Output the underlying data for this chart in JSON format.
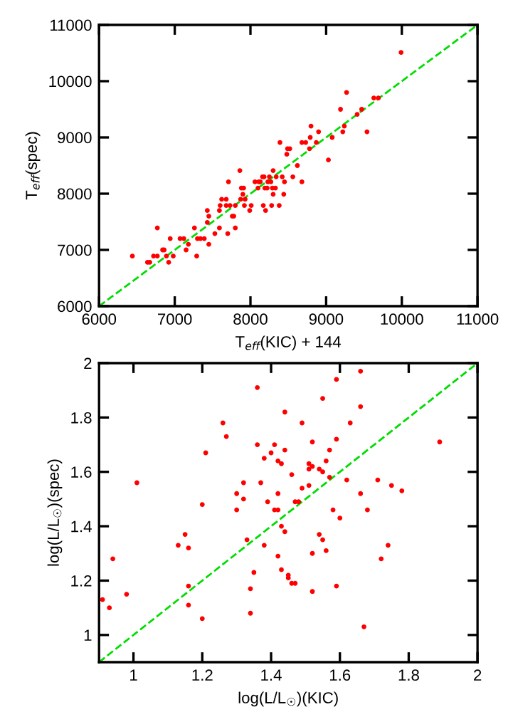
{
  "chart_data": [
    {
      "type": "scatter",
      "xlabel": "T$_{eff}$(KIC) + 144",
      "ylabel": "T$_{eff}$(spec)",
      "xlim": [
        6000,
        11000
      ],
      "ylim": [
        6000,
        11000
      ],
      "xticks": [
        6000,
        7000,
        8000,
        9000,
        10000,
        11000
      ],
      "yticks": [
        6000,
        7000,
        8000,
        9000,
        10000,
        11000
      ],
      "grid": false,
      "marker": "circle",
      "series": [
        {
          "color": "#ff0000",
          "x": [
            6440,
            6640,
            6670,
            6720,
            6770,
            6770,
            6840,
            6860,
            6890,
            6920,
            6940,
            6980,
            7070,
            7120,
            7150,
            7180,
            7260,
            7290,
            7300,
            7340,
            7390,
            7450,
            7430,
            7450,
            7430,
            7530,
            7590,
            7590,
            7600,
            7620,
            7680,
            7680,
            7710,
            7700,
            7730,
            7760,
            7780,
            7800,
            7800,
            7860,
            7870,
            7880,
            7900,
            7910,
            7930,
            7920,
            7990,
            8010,
            8060,
            8100,
            8110,
            8130,
            8160,
            8180,
            8170,
            8200,
            8190,
            8220,
            8230,
            8250,
            8270,
            8280,
            8290,
            8300,
            8300,
            8330,
            8340,
            8380,
            8390,
            8420,
            8440,
            8450,
            8480,
            8490,
            8520,
            8560,
            8620,
            8680,
            8680,
            8730,
            8780,
            8790,
            8800,
            8870,
            8900,
            9030,
            9080,
            9190,
            9220,
            9240,
            9270,
            9410,
            9470,
            9540,
            9630,
            9690,
            9990
          ],
          "values": [
            6890,
            6780,
            6780,
            6890,
            6890,
            7390,
            7000,
            7000,
            6890,
            6780,
            7200,
            6890,
            7200,
            7200,
            7000,
            7100,
            7390,
            6890,
            7200,
            7200,
            7200,
            7100,
            7490,
            7600,
            7700,
            7290,
            7390,
            7700,
            7790,
            7900,
            7790,
            7900,
            8210,
            7290,
            7790,
            7600,
            7600,
            7390,
            7790,
            8410,
            7900,
            8100,
            7990,
            8100,
            7900,
            7790,
            7700,
            7790,
            8210,
            8100,
            8210,
            8210,
            8300,
            8300,
            7790,
            7700,
            8100,
            8100,
            8210,
            8300,
            8210,
            7790,
            8100,
            8410,
            7990,
            8100,
            8300,
            7790,
            8910,
            8300,
            7990,
            8210,
            8700,
            8800,
            8800,
            8300,
            8500,
            8910,
            8210,
            8910,
            8800,
            9000,
            9200,
            8910,
            9100,
            8600,
            9000,
            9500,
            9100,
            9200,
            9800,
            9410,
            9500,
            9100,
            9700,
            9700,
            10510
          ]
        },
        {
          "type": "line",
          "color": "#00dd00",
          "line_style": "dashed",
          "marker": "none",
          "x": [
            6000,
            11000
          ],
          "values": [
            6000,
            11000
          ]
        }
      ]
    },
    {
      "type": "scatter",
      "xlabel": "log(L/L$_{☉}$)(KIC)",
      "ylabel": "log(L/L$_{☉}$)(spec)",
      "xlim": [
        0.9,
        2
      ],
      "ylim": [
        0.9,
        2
      ],
      "xticks": [
        1,
        1.2,
        1.4,
        1.6,
        1.8,
        2
      ],
      "yticks": [
        1,
        1.2,
        1.4,
        1.6,
        1.8,
        2
      ],
      "grid": false,
      "marker": "circle",
      "series": [
        {
          "color": "#ff0000",
          "x": [
            0.91,
            0.93,
            0.94,
            0.98,
            1.01,
            1.13,
            1.15,
            1.16,
            1.16,
            1.16,
            1.2,
            1.2,
            1.21,
            1.26,
            1.27,
            1.3,
            1.3,
            1.32,
            1.32,
            1.33,
            1.34,
            1.34,
            1.35,
            1.36,
            1.36,
            1.37,
            1.38,
            1.38,
            1.39,
            1.4,
            1.41,
            1.41,
            1.42,
            1.42,
            1.42,
            1.42,
            1.43,
            1.43,
            1.43,
            1.44,
            1.44,
            1.44,
            1.45,
            1.45,
            1.46,
            1.46,
            1.47,
            1.47,
            1.48,
            1.49,
            1.49,
            1.51,
            1.51,
            1.51,
            1.52,
            1.52,
            1.52,
            1.52,
            1.54,
            1.54,
            1.55,
            1.55,
            1.55,
            1.56,
            1.56,
            1.57,
            1.57,
            1.58,
            1.59,
            1.59,
            1.59,
            1.6,
            1.62,
            1.63,
            1.66,
            1.66,
            1.66,
            1.67,
            1.68,
            1.71,
            1.72,
            1.74,
            1.75,
            1.78,
            1.89
          ],
          "values": [
            1.13,
            1.1,
            1.28,
            1.15,
            1.56,
            1.33,
            1.37,
            1.32,
            1.18,
            1.11,
            1.06,
            1.48,
            1.67,
            1.78,
            1.73,
            1.52,
            1.46,
            1.56,
            1.5,
            1.35,
            1.08,
            1.17,
            1.23,
            1.91,
            1.7,
            1.56,
            1.65,
            1.33,
            1.49,
            1.67,
            1.7,
            1.46,
            1.64,
            1.52,
            1.29,
            1.46,
            1.63,
            1.24,
            1.4,
            1.38,
            1.68,
            1.82,
            1.21,
            1.22,
            1.59,
            1.19,
            1.19,
            1.49,
            1.49,
            1.54,
            1.78,
            1.55,
            1.61,
            1.63,
            1.62,
            1.71,
            1.3,
            1.16,
            1.61,
            1.37,
            1.6,
            1.35,
            1.87,
            1.64,
            1.31,
            1.68,
            1.58,
            1.46,
            1.94,
            1.72,
            1.18,
            1.43,
            1.57,
            1.78,
            1.97,
            1.84,
            1.52,
            1.03,
            1.46,
            1.57,
            1.28,
            1.33,
            1.55,
            1.53,
            1.71
          ]
        },
        {
          "type": "line",
          "color": "#00dd00",
          "line_style": "dashed",
          "marker": "none",
          "x": [
            0.9,
            2
          ],
          "values": [
            0.9,
            2
          ]
        }
      ]
    }
  ]
}
